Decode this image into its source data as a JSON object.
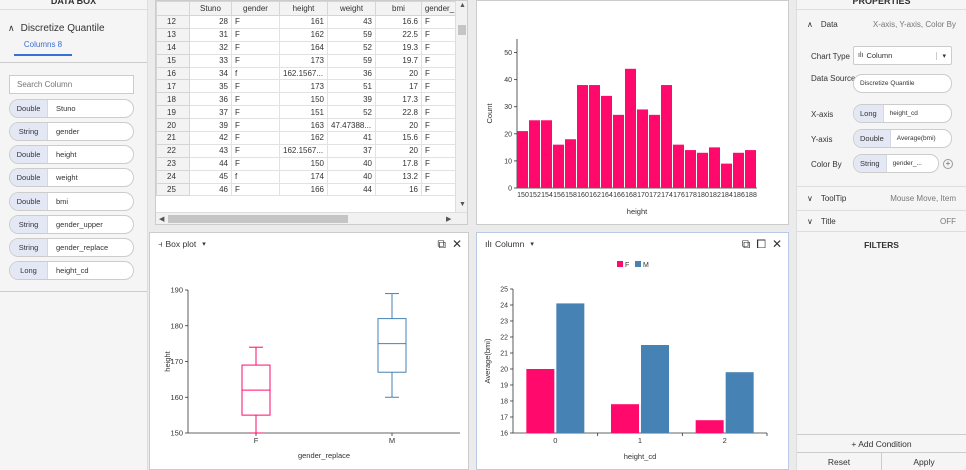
{
  "left_panel": {
    "title": "DATA BOX",
    "section": "Discretize Quantile",
    "columns_tab": "Columns 8",
    "search_placeholder": "Search Column",
    "columns": [
      {
        "type": "Double",
        "name": "Stuno"
      },
      {
        "type": "String",
        "name": "gender"
      },
      {
        "type": "Double",
        "name": "height"
      },
      {
        "type": "Double",
        "name": "weight"
      },
      {
        "type": "Double",
        "name": "bmi"
      },
      {
        "type": "String",
        "name": "gender_upper"
      },
      {
        "type": "String",
        "name": "gender_replace"
      },
      {
        "type": "Long",
        "name": "height_cd"
      }
    ]
  },
  "grid": {
    "headers": [
      "Stuno",
      "gender",
      "height",
      "weight",
      "bmi",
      "gender_"
    ],
    "rows": [
      [
        "12",
        "28",
        "F",
        "161",
        "43",
        "16.6",
        "F"
      ],
      [
        "13",
        "31",
        "F",
        "162",
        "59",
        "22.5",
        "F"
      ],
      [
        "14",
        "32",
        "F",
        "164",
        "52",
        "19.3",
        "F"
      ],
      [
        "15",
        "33",
        "F",
        "173",
        "59",
        "19.7",
        "F"
      ],
      [
        "16",
        "34",
        "f",
        "162.1567...",
        "36",
        "20",
        "F"
      ],
      [
        "17",
        "35",
        "F",
        "173",
        "51",
        "17",
        "F"
      ],
      [
        "18",
        "36",
        "F",
        "150",
        "39",
        "17.3",
        "F"
      ],
      [
        "19",
        "37",
        "F",
        "151",
        "52",
        "22.8",
        "F"
      ],
      [
        "20",
        "39",
        "F",
        "163",
        "47.47388...",
        "20",
        "F"
      ],
      [
        "21",
        "42",
        "F",
        "162",
        "41",
        "15.6",
        "F"
      ],
      [
        "22",
        "43",
        "F",
        "162.1567...",
        "37",
        "20",
        "F"
      ],
      [
        "23",
        "44",
        "F",
        "150",
        "40",
        "17.8",
        "F"
      ],
      [
        "24",
        "45",
        "f",
        "174",
        "40",
        "13.2",
        "F"
      ],
      [
        "25",
        "46",
        "F",
        "166",
        "44",
        "16",
        "F"
      ]
    ]
  },
  "box_panel": {
    "title": "Box plot"
  },
  "column_panel": {
    "title": "Column"
  },
  "properties": {
    "title": "PROPERTIES",
    "data_section": "Data",
    "data_summary": "X-axis, Y-axis, Color By",
    "chart_type_label": "Chart Type",
    "chart_type_value": "Column",
    "data_source_label": "Data Source",
    "data_source_value": "Discretize Quantile",
    "xaxis_label": "X-axis",
    "xaxis_type": "Long",
    "xaxis_value": "height_cd",
    "yaxis_label": "Y-axis",
    "yaxis_type": "Double",
    "yaxis_value": "Average(bmi)",
    "colorby_label": "Color By",
    "colorby_type": "String",
    "colorby_value": "gender_...",
    "tooltip_label": "ToolTip",
    "tooltip_value": "Mouse Move, Item",
    "title_label": "Title",
    "title_value": "OFF",
    "filters": "FILTERS",
    "add_condition": "+ Add Condition",
    "reset": "Reset",
    "apply": "Apply"
  },
  "colors": {
    "pink": "#ff0a6c",
    "blue": "#4682b4",
    "accent": "#3b6fd6"
  },
  "chart_data": [
    {
      "type": "bar",
      "categories": [
        "150",
        "152",
        "154",
        "156",
        "158",
        "160",
        "162",
        "164",
        "166",
        "168",
        "170",
        "172",
        "174",
        "176",
        "178",
        "180",
        "182",
        "184",
        "186",
        "188"
      ],
      "values": [
        21,
        25,
        25,
        16,
        18,
        38,
        38,
        34,
        27,
        44,
        29,
        27,
        38,
        16,
        14,
        13,
        15,
        9,
        13,
        14
      ],
      "xlabel": "height",
      "ylabel": "Count",
      "ylim": [
        0,
        55
      ],
      "yticks": [
        0,
        10,
        20,
        30,
        40,
        50
      ],
      "color": "#ff0a6c"
    },
    {
      "type": "box",
      "categories": [
        "F",
        "M"
      ],
      "series": [
        {
          "name": "F",
          "min": 150,
          "q1": 155,
          "median": 162,
          "q3": 169,
          "max": 174,
          "color": "#ff0a6c"
        },
        {
          "name": "M",
          "min": 160,
          "q1": 167,
          "median": 175,
          "q3": 182,
          "max": 189,
          "color": "#4682b4"
        }
      ],
      "xlabel": "gender_replace",
      "ylabel": "height",
      "ylim": [
        150,
        190
      ],
      "yticks": [
        150,
        160,
        170,
        180,
        190
      ]
    },
    {
      "type": "bar",
      "categories": [
        "0",
        "1",
        "2"
      ],
      "series": [
        {
          "name": "F",
          "values": [
            20.0,
            17.8,
            16.8
          ],
          "color": "#ff0a6c"
        },
        {
          "name": "M",
          "values": [
            24.1,
            21.5,
            19.8
          ],
          "color": "#4682b4"
        }
      ],
      "xlabel": "height_cd",
      "ylabel": "Average(bmi)",
      "ylim": [
        16,
        25
      ],
      "yticks": [
        16,
        17,
        18,
        19,
        20,
        21,
        22,
        23,
        24,
        25
      ],
      "legend": "top-center"
    }
  ]
}
